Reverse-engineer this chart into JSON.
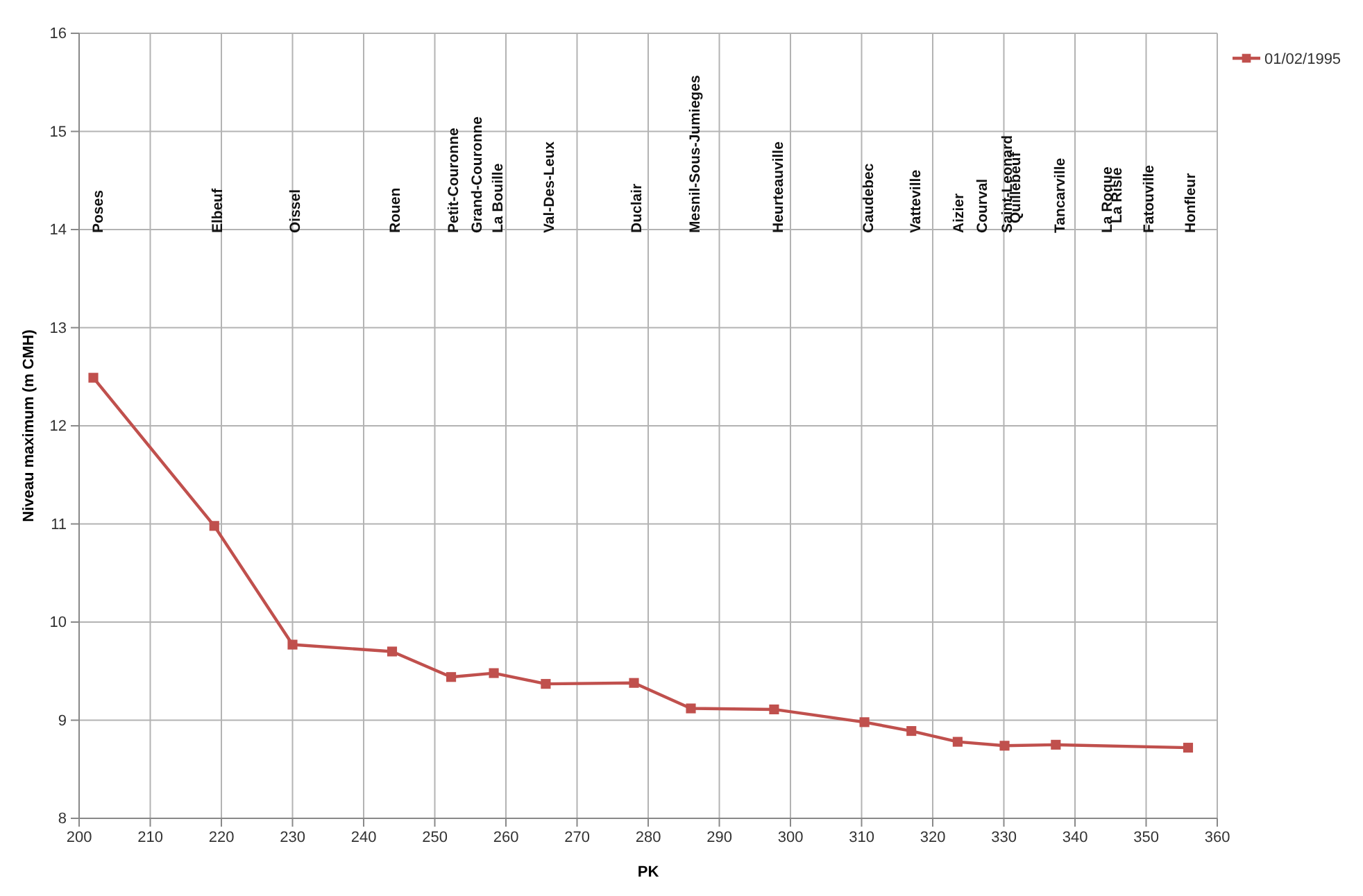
{
  "chart_data": {
    "type": "line",
    "xlabel": "PK",
    "ylabel": "Niveau maximum (m CMH)",
    "x": [
      202,
      219,
      230,
      244,
      252.3,
      258.3,
      265.6,
      278,
      286,
      297.7,
      310.4,
      317,
      323.5,
      330.1,
      337.3,
      355.9
    ],
    "series": [
      {
        "name": "01/02/1995",
        "color": "#c0504d",
        "values": [
          12.49,
          10.98,
          9.77,
          9.7,
          9.44,
          9.48,
          9.37,
          9.38,
          9.12,
          9.11,
          8.98,
          8.89,
          8.78,
          8.74,
          8.75,
          8.72
        ]
      }
    ],
    "xlim": [
      200,
      360
    ],
    "xticks": [
      200,
      210,
      220,
      230,
      240,
      250,
      260,
      270,
      280,
      290,
      300,
      310,
      320,
      330,
      340,
      350,
      360
    ],
    "ylim": [
      8,
      16
    ],
    "yticks": [
      8,
      9,
      10,
      11,
      12,
      13,
      14,
      15,
      16
    ],
    "grid": true,
    "legend": "top right",
    "marker": "square",
    "line_style": "solid",
    "annotations": [
      "Poses",
      "Elbeuf",
      "Oissel",
      "Rouen",
      "Petit-Couronne",
      "Grand-Couronne",
      "La Bouille",
      "Val-Des-Leux",
      "Duclair",
      "Mesnil-Sous-Jumieges",
      "Heurteauville",
      "Caudebec",
      "Vatteville",
      "Aizier",
      "Courval",
      "Saint-Leonard",
      "Quillebeuf",
      "Tancarville",
      "La Roque",
      "La Risle",
      "Fatouville",
      "Honfleur"
    ]
  }
}
